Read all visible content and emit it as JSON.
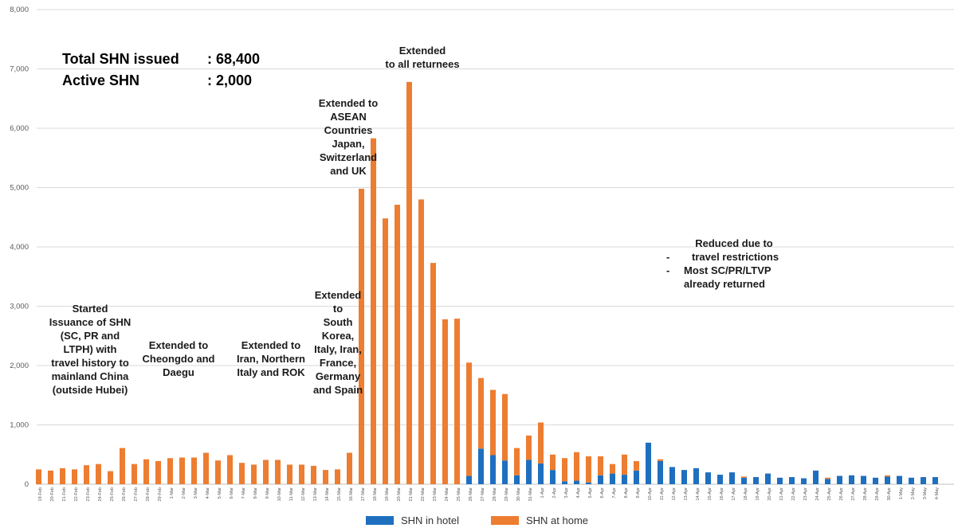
{
  "colors": {
    "hotel": "#1f6fbf",
    "home": "#ed7d31",
    "grid": "#d9d9d9",
    "axis": "#bfbfbf"
  },
  "stats": {
    "total_label": "Total SHN issued",
    "total_value": ": 68,400",
    "active_label": "Active SHN",
    "active_value": ": 2,000"
  },
  "annotations": {
    "started": "Started\nIssuance of SHN\n(SC, PR and\nLTPH) with\ntravel history to\nmainland China\n(outside Hubei)",
    "cheongdo": "Extended to\nCheongdo and\nDaegu",
    "iran": "Extended to\nIran, Northern\nItaly and ROK",
    "europe": "Extended\nto\nSouth\nKorea,\nItaly, Iran,\nFrance,\nGermany\nand Spain",
    "asean": "Extended to\nASEAN\nCountries\nJapan,\nSwitzerland\nand UK",
    "all": "Extended\nto all returnees",
    "reduced_title": "Reduced due to",
    "reduced_items": [
      "travel restrictions",
      "Most SC/PR/LTVP already  returned"
    ],
    "reduced_dash": "-"
  },
  "chart_data": {
    "type": "bar",
    "stacked": true,
    "ylim": [
      0,
      8000
    ],
    "yticks": [
      "0",
      "1,000",
      "2,000",
      "3,000",
      "4,000",
      "5,000",
      "6,000",
      "7,000",
      "8,000"
    ],
    "grid": true,
    "legend_position": "bottom",
    "categories": [
      "19-Feb",
      "20-Feb",
      "21-Feb",
      "22-Feb",
      "23-Feb",
      "24-Feb",
      "25-Feb",
      "26-Feb",
      "27-Feb",
      "28-Feb",
      "29-Feb",
      "1-Mar",
      "2-Mar",
      "3-Mar",
      "4-Mar",
      "5-Mar",
      "6-Mar",
      "7-Mar",
      "8-Mar",
      "9-Mar",
      "10-Mar",
      "11-Mar",
      "12-Mar",
      "13-Mar",
      "14-Mar",
      "15-Mar",
      "16-Mar",
      "17-Mar",
      "18-Mar",
      "19-Mar",
      "20-Mar",
      "21-Mar",
      "22-Mar",
      "23-Mar",
      "24-Mar",
      "25-Mar",
      "26-Mar",
      "27-Mar",
      "28-Mar",
      "29-Mar",
      "30-Mar",
      "31-Mar",
      "1-Apr",
      "2-Apr",
      "3-Apr",
      "4-Apr",
      "5-Apr",
      "6-Apr",
      "7-Apr",
      "8-Apr",
      "9-Apr",
      "10-Apr",
      "11-Apr",
      "12-Apr",
      "13-Apr",
      "14-Apr",
      "15-Apr",
      "16-Apr",
      "17-Apr",
      "18-Apr",
      "19-Apr",
      "20-Apr",
      "21-Apr",
      "22-Apr",
      "23-Apr",
      "24-Apr",
      "25-Apr",
      "26-Apr",
      "27-Apr",
      "28-Apr",
      "29-Apr",
      "30-Apr",
      "1-May",
      "2-May",
      "3-May",
      "4-May"
    ],
    "series": [
      {
        "name": "SHN in hotel",
        "values": [
          0,
          0,
          0,
          0,
          0,
          0,
          0,
          0,
          0,
          0,
          0,
          0,
          0,
          0,
          0,
          0,
          0,
          0,
          0,
          0,
          0,
          0,
          0,
          0,
          0,
          0,
          0,
          0,
          0,
          0,
          0,
          0,
          0,
          0,
          0,
          0,
          140,
          600,
          490,
          400,
          150,
          410,
          350,
          240,
          50,
          60,
          30,
          150,
          180,
          160,
          230,
          700,
          390,
          290,
          240,
          270,
          200,
          160,
          200,
          110,
          120,
          180,
          110,
          120,
          100,
          230,
          90,
          140,
          150,
          140,
          110,
          130,
          140,
          110,
          120,
          120
        ]
      },
      {
        "name": "SHN at home",
        "values": [
          250,
          230,
          270,
          250,
          320,
          340,
          220,
          610,
          340,
          420,
          390,
          440,
          450,
          450,
          530,
          400,
          490,
          360,
          330,
          410,
          410,
          330,
          330,
          310,
          240,
          250,
          530,
          4980,
          5830,
          4480,
          4710,
          6780,
          4800,
          3730,
          2780,
          2790,
          1910,
          1190,
          1100,
          1120,
          460,
          410,
          690,
          260,
          390,
          480,
          440,
          320,
          160,
          340,
          160,
          0,
          30,
          0,
          0,
          0,
          0,
          0,
          0,
          20,
          0,
          0,
          0,
          0,
          0,
          0,
          20,
          0,
          0,
          0,
          0,
          20,
          0,
          0,
          0,
          0
        ]
      }
    ]
  }
}
